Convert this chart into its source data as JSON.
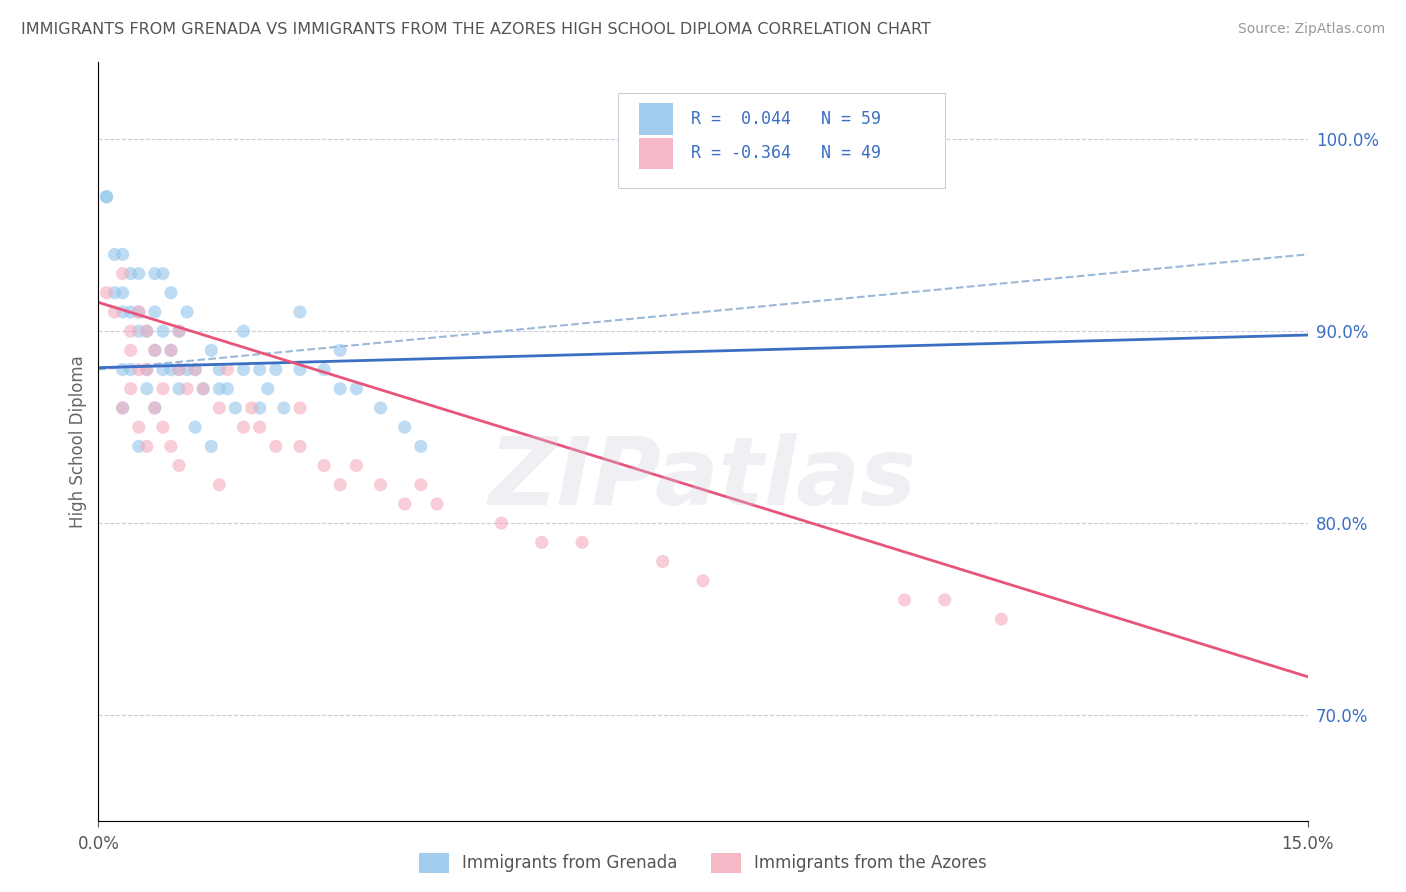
{
  "title": "IMMIGRANTS FROM GRENADA VS IMMIGRANTS FROM THE AZORES HIGH SCHOOL DIPLOMA CORRELATION CHART",
  "source": "Source: ZipAtlas.com",
  "ylabel": "High School Diploma",
  "ytick_values": [
    0.7,
    0.8,
    0.9,
    1.0
  ],
  "xlim": [
    0.0,
    0.15
  ],
  "ylim": [
    0.645,
    1.04
  ],
  "legend_line1": "R =  0.044   N = 59",
  "legend_line2": "R = -0.364   N = 49",
  "color_grenada": "#92C5EC",
  "color_azores": "#F4ACBE",
  "line_color_grenada": "#3A6FC4",
  "line_color_azores": "#E8547A",
  "dashed_color": "#9BB8D8",
  "legend_text_color": "#3A6FC4",
  "title_color": "#555555",
  "source_color": "#999999",
  "background_color": "#ffffff",
  "scatter_alpha": 0.6,
  "marker_size": 90,
  "watermark": "ZIPatlas",
  "grenada_x": [
    0.001,
    0.001,
    0.002,
    0.002,
    0.003,
    0.003,
    0.003,
    0.004,
    0.004,
    0.005,
    0.005,
    0.005,
    0.006,
    0.006,
    0.007,
    0.007,
    0.007,
    0.008,
    0.008,
    0.009,
    0.009,
    0.01,
    0.01,
    0.011,
    0.011,
    0.012,
    0.013,
    0.014,
    0.015,
    0.016,
    0.017,
    0.018,
    0.018,
    0.02,
    0.021,
    0.022,
    0.023,
    0.025,
    0.028,
    0.03,
    0.032,
    0.035,
    0.038,
    0.04,
    0.025,
    0.03,
    0.008,
    0.01,
    0.015,
    0.02,
    0.003,
    0.003,
    0.004,
    0.005,
    0.006,
    0.007,
    0.009,
    0.012,
    0.014
  ],
  "grenada_y": [
    0.97,
    0.97,
    0.92,
    0.94,
    0.92,
    0.91,
    0.94,
    0.93,
    0.91,
    0.9,
    0.93,
    0.91,
    0.9,
    0.88,
    0.91,
    0.89,
    0.93,
    0.9,
    0.88,
    0.89,
    0.92,
    0.87,
    0.9,
    0.88,
    0.91,
    0.88,
    0.87,
    0.89,
    0.88,
    0.87,
    0.86,
    0.9,
    0.88,
    0.86,
    0.87,
    0.88,
    0.86,
    0.91,
    0.88,
    0.89,
    0.87,
    0.86,
    0.85,
    0.84,
    0.88,
    0.87,
    0.93,
    0.88,
    0.87,
    0.88,
    0.88,
    0.86,
    0.88,
    0.84,
    0.87,
    0.86,
    0.88,
    0.85,
    0.84
  ],
  "azores_x": [
    0.001,
    0.002,
    0.003,
    0.004,
    0.004,
    0.005,
    0.005,
    0.006,
    0.006,
    0.007,
    0.008,
    0.009,
    0.01,
    0.01,
    0.011,
    0.012,
    0.013,
    0.015,
    0.016,
    0.018,
    0.019,
    0.02,
    0.022,
    0.025,
    0.025,
    0.028,
    0.03,
    0.032,
    0.035,
    0.038,
    0.04,
    0.042,
    0.05,
    0.055,
    0.06,
    0.07,
    0.075,
    0.1,
    0.105,
    0.112,
    0.003,
    0.004,
    0.005,
    0.006,
    0.007,
    0.008,
    0.009,
    0.01,
    0.015
  ],
  "azores_y": [
    0.92,
    0.91,
    0.93,
    0.9,
    0.89,
    0.91,
    0.88,
    0.9,
    0.88,
    0.89,
    0.87,
    0.89,
    0.88,
    0.9,
    0.87,
    0.88,
    0.87,
    0.86,
    0.88,
    0.85,
    0.86,
    0.85,
    0.84,
    0.86,
    0.84,
    0.83,
    0.82,
    0.83,
    0.82,
    0.81,
    0.82,
    0.81,
    0.8,
    0.79,
    0.79,
    0.78,
    0.77,
    0.76,
    0.76,
    0.75,
    0.86,
    0.87,
    0.85,
    0.84,
    0.86,
    0.85,
    0.84,
    0.83,
    0.82
  ],
  "grenada_trend": [
    0.0,
    0.15,
    0.881,
    0.898
  ],
  "azores_trend": [
    0.0,
    0.15,
    0.915,
    0.72
  ],
  "dashed_trend": [
    0.0,
    0.15,
    0.88,
    0.94
  ]
}
